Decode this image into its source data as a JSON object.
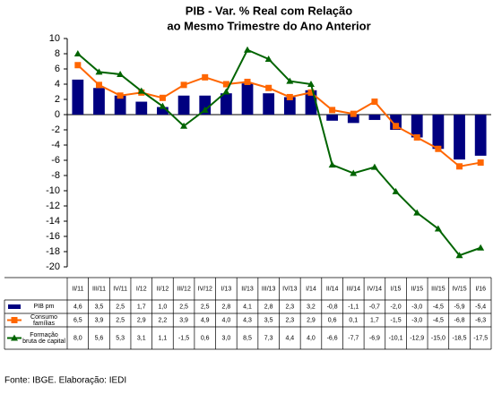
{
  "chart_data": {
    "type": "bar-line-table",
    "title": [
      "PIB - Var. % Real com Relação",
      "ao Mesmo Trimestre do Ano Anterior"
    ],
    "categories": [
      "II/11",
      "III/11",
      "IV/11",
      "I/12",
      "II/12",
      "III/12",
      "IV/12",
      "I/13",
      "II/13",
      "III/13",
      "IV/13",
      "I/14",
      "II/14",
      "III/14",
      "IV/14",
      "I/15",
      "II/15",
      "III/15",
      "IV/15",
      "I/16"
    ],
    "series": [
      {
        "name": "PIB pm",
        "type": "bar",
        "color": "#000080",
        "values": [
          4.6,
          3.5,
          2.5,
          1.7,
          1.0,
          2.5,
          2.5,
          2.8,
          4.1,
          2.8,
          2.3,
          3.2,
          -0.8,
          -1.1,
          -0.7,
          -2.0,
          -3.0,
          -4.5,
          -5.9,
          -5.4
        ],
        "value_labels": [
          "4,6",
          "3,5",
          "2,5",
          "1,7",
          "1,0",
          "2,5",
          "2,5",
          "2,8",
          "4,1",
          "2,8",
          "2,3",
          "3,2",
          "-0,8",
          "-1,1",
          "-0,7",
          "-2,0",
          "-3,0",
          "-4,5",
          "-5,9",
          "-5,4"
        ]
      },
      {
        "name": "Consumo famílias",
        "type": "line",
        "marker": "square",
        "color": "#ff6600",
        "values": [
          6.5,
          3.9,
          2.5,
          2.9,
          2.2,
          3.9,
          4.9,
          4.0,
          4.3,
          3.5,
          2.3,
          2.9,
          0.6,
          0.1,
          1.7,
          -1.5,
          -3.0,
          -4.5,
          -6.8,
          -6.3
        ],
        "value_labels": [
          "6,5",
          "3,9",
          "2,5",
          "2,9",
          "2,2",
          "3,9",
          "4,9",
          "4,0",
          "4,3",
          "3,5",
          "2,3",
          "2,9",
          "0,6",
          "0,1",
          "1,7",
          "-1,5",
          "-3,0",
          "-4,5",
          "-6,8",
          "-6,3"
        ]
      },
      {
        "name": "Formação bruta de capital",
        "type": "line",
        "marker": "triangle",
        "color": "#006400",
        "values": [
          8.0,
          5.6,
          5.3,
          3.1,
          1.1,
          -1.5,
          0.6,
          3.0,
          8.5,
          7.3,
          4.4,
          4.0,
          -6.6,
          -7.7,
          -6.9,
          -10.1,
          -12.9,
          -15.0,
          -18.5,
          -17.5
        ],
        "value_labels": [
          "8,0",
          "5,6",
          "5,3",
          "3,1",
          "1,1",
          "-1,5",
          "0,6",
          "3,0",
          "8,5",
          "7,3",
          "4,4",
          "4,0",
          "-6,6",
          "-7,7",
          "-6,9",
          "-10,1",
          "-12,9",
          "-15,0",
          "-18,5",
          "-17,5"
        ]
      }
    ],
    "ylim": [
      -20,
      10
    ],
    "yticks": [
      10,
      8,
      6,
      4,
      2,
      0,
      -2,
      -4,
      -6,
      -8,
      -10,
      -12,
      -14,
      -16,
      -18,
      -20
    ],
    "source": "Fonte: IBGE. Elaboração: IEDI"
  }
}
